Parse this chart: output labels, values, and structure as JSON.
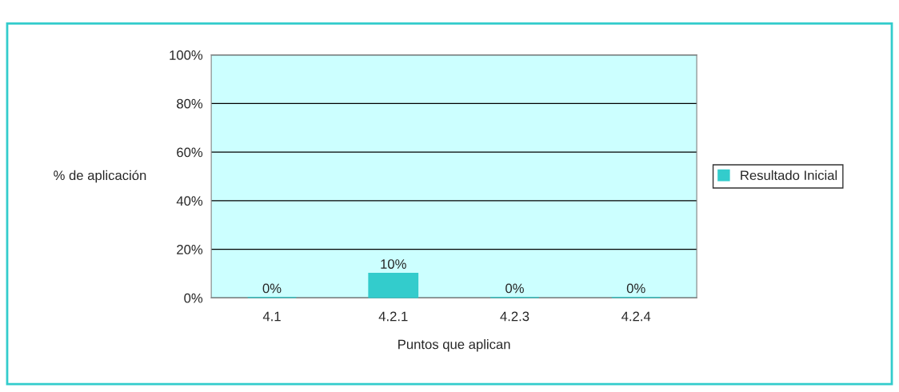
{
  "chart_data": {
    "type": "bar",
    "xlabel": "Puntos que aplican",
    "ylabel": "% de aplicación",
    "categories": [
      "4.1",
      "4.2.1",
      "4.2.3",
      "4.2.4"
    ],
    "series": [
      {
        "name": "Resultado Inicial",
        "color": "#33cccc",
        "values": [
          0,
          10,
          0,
          0
        ]
      }
    ],
    "value_labels": [
      "0%",
      "10%",
      "0%",
      "0%"
    ],
    "ylim": [
      0,
      100
    ],
    "yticks": [
      {
        "value": 0,
        "label": "0%"
      },
      {
        "value": 20,
        "label": "20%"
      },
      {
        "value": 40,
        "label": "40%"
      },
      {
        "value": 60,
        "label": "60%"
      },
      {
        "value": 80,
        "label": "80%"
      },
      {
        "value": 100,
        "label": "100%"
      }
    ],
    "grid": "y",
    "legend": "right"
  }
}
